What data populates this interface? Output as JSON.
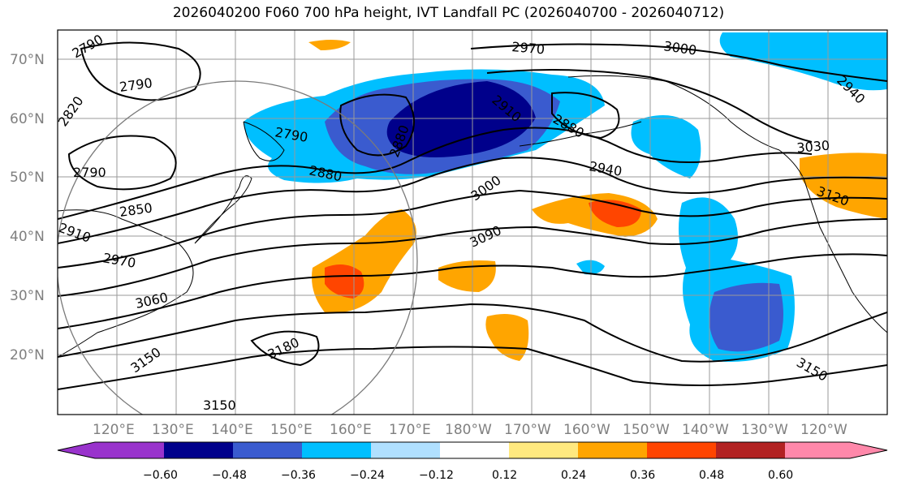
{
  "title": "2026040200 F060 700 hPa height, IVT Landfall PC (2026040700 - 2026040712)",
  "lat_labels": [
    "70°N",
    "60°N",
    "50°N",
    "40°N",
    "30°N",
    "20°N"
  ],
  "lon_labels": [
    "120°E",
    "130°E",
    "140°E",
    "150°E",
    "160°E",
    "170°E",
    "180°W",
    "170°W",
    "160°W",
    "150°W",
    "140°W",
    "130°W",
    "120°W"
  ],
  "colorbar": {
    "labels": [
      "−0.60",
      "−0.48",
      "−0.36",
      "−0.24",
      "−0.12",
      "0.12",
      "0.24",
      "0.36",
      "0.48",
      "0.60"
    ],
    "colors": [
      "#9933cc",
      "#00008b",
      "#3a5bcf",
      "#00bfff",
      "#b0e0ff",
      "#ffffff",
      "#ffe97f",
      "#ffa500",
      "#ff4500",
      "#b22222",
      "#ff88aa"
    ]
  },
  "contour_labels": [
    "2790",
    "2790",
    "2820",
    "2790",
    "2790",
    "2850",
    "2910",
    "2970",
    "3060",
    "3150",
    "3180",
    "3150",
    "2880",
    "2970",
    "3000",
    "2910",
    "2880",
    "2940",
    "3000",
    "3090",
    "3030",
    "3120",
    "3150",
    "2940",
    "2880"
  ]
}
